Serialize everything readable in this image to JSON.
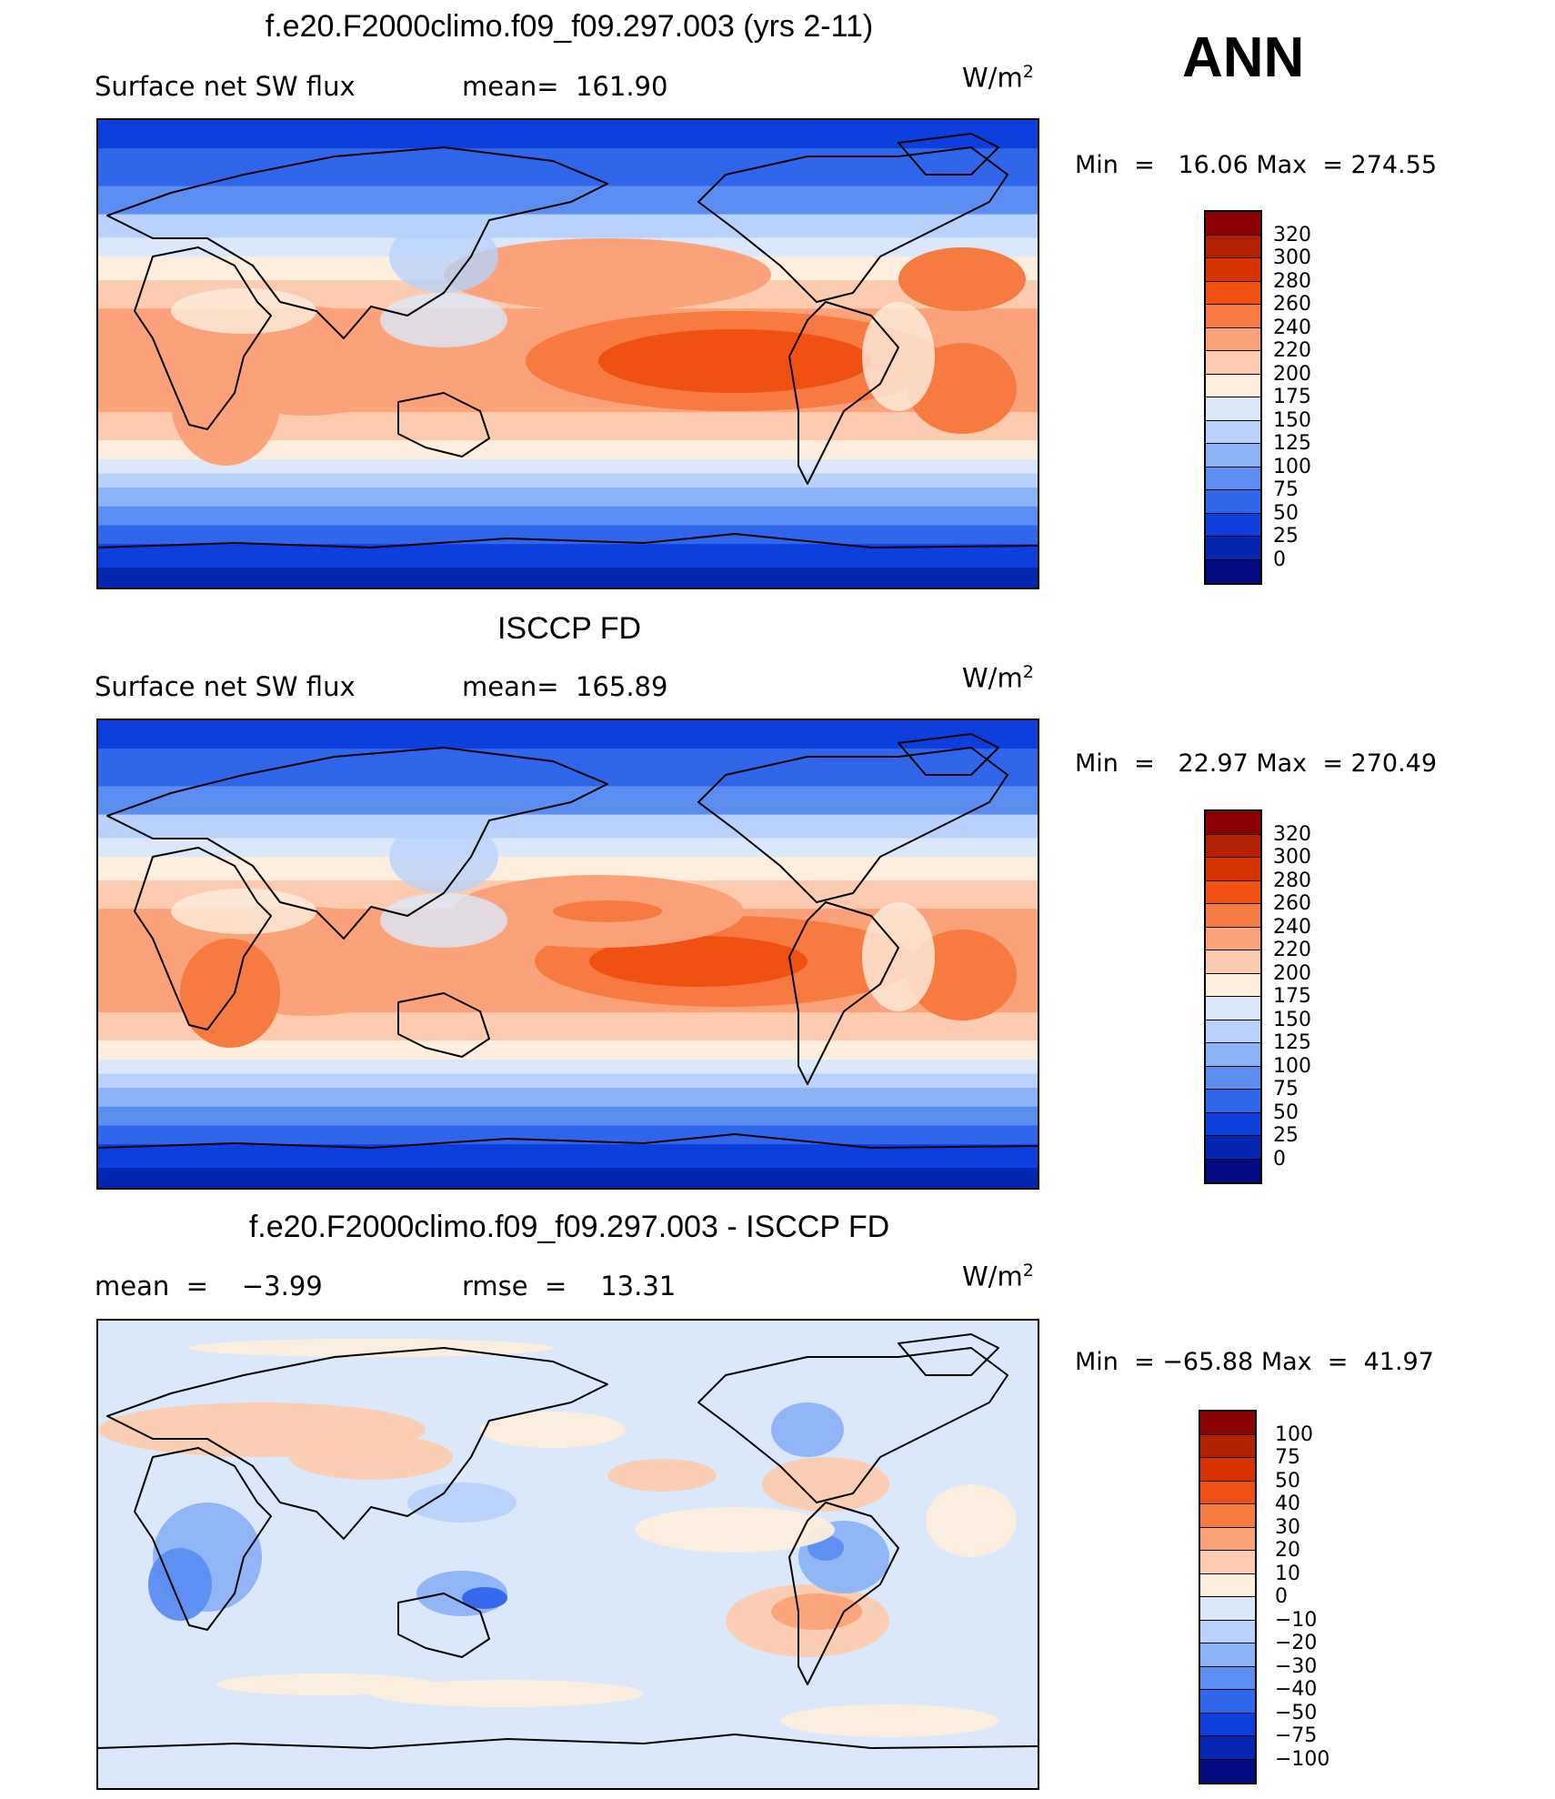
{
  "season": "ANN",
  "units": "W/m",
  "units_exp": "2",
  "panels": [
    {
      "title": "f.e20.F2000climo.f09_f09.297.003 (yrs 2-11)",
      "left_label": "Surface net SW flux",
      "mid_label": "mean=  161.90",
      "min_label": "Min  =",
      "min_value": "16.06",
      "max_label": "Max  =",
      "max_value": "274.55",
      "kind": "model"
    },
    {
      "title": "ISCCP FD",
      "left_label": "Surface net SW flux",
      "mid_label": "mean=  165.89",
      "min_label": "Min  =",
      "min_value": "22.97",
      "max_label": "Max  =",
      "max_value": "270.49",
      "kind": "obs"
    },
    {
      "title": "f.e20.F2000climo.f09_f09.297.003 - ISCCP FD",
      "left_label": "mean  =    −3.99",
      "mid_label": "rmse  =    13.31",
      "min_label": "Min  =",
      "min_value": "−65.88",
      "max_label": "Max  =",
      "max_value": "41.97",
      "kind": "diff"
    }
  ],
  "colorbars": {
    "abs": {
      "labels": [
        "320",
        "300",
        "280",
        "260",
        "240",
        "220",
        "200",
        "175",
        "150",
        "125",
        "100",
        "75",
        "50",
        "25",
        "0"
      ],
      "colors": [
        "#8b0000",
        "#b22200",
        "#d83400",
        "#f05010",
        "#f77a40",
        "#fba27a",
        "#fdccb0",
        "#fdeedd",
        "#dbe8fb",
        "#b8d2fb",
        "#8cb3f8",
        "#5c8ef2",
        "#2f66ea",
        "#0c3fdc",
        "#0526b0",
        "#020a80"
      ]
    },
    "diff": {
      "labels": [
        "100",
        "75",
        "50",
        "40",
        "30",
        "20",
        "10",
        "0",
        "−10",
        "−20",
        "−30",
        "−40",
        "−50",
        "−75",
        "−100"
      ],
      "colors": [
        "#8b0000",
        "#b22200",
        "#d83400",
        "#f05010",
        "#f77a40",
        "#fba27a",
        "#fdccb0",
        "#fdeedd",
        "#dbe8fb",
        "#b8d2fb",
        "#8cb3f8",
        "#5c8ef2",
        "#2f66ea",
        "#0c3fdc",
        "#0526b0",
        "#020a80"
      ]
    }
  }
}
